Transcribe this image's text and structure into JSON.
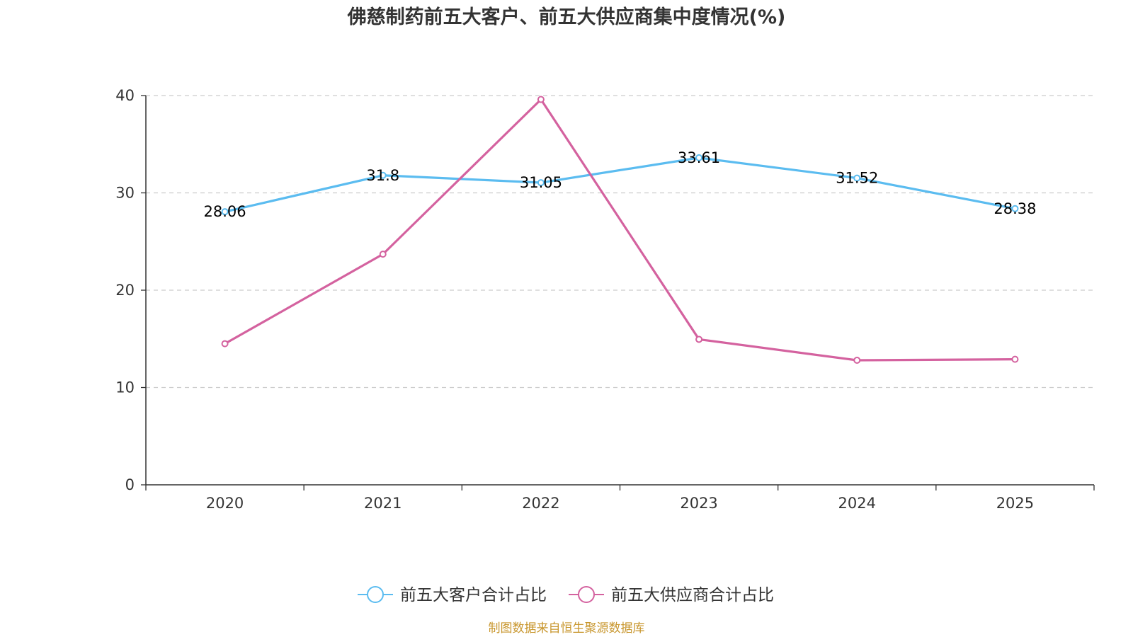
{
  "chart_data": {
    "type": "line",
    "title": "佛慈制药前五大客户、前五大供应商集中度情况(%)",
    "categories": [
      "2020",
      "2021",
      "2022",
      "2023",
      "2024",
      "2025"
    ],
    "ylim": [
      0,
      40
    ],
    "yticks": [
      0,
      10,
      20,
      30,
      40
    ],
    "grid": true,
    "legend_position": "bottom",
    "series": [
      {
        "name": "前五大客户合计占比",
        "color": "#5bbcf0",
        "values": [
          28.06,
          31.8,
          31.05,
          33.61,
          31.52,
          28.38
        ],
        "labels": [
          "28.06",
          "31.8",
          "31.05",
          "33.61",
          "31.52",
          "28.38"
        ],
        "show_labels": true
      },
      {
        "name": "前五大供应商合计占比",
        "color": "#d4629f",
        "values": [
          14.5,
          23.7,
          39.6,
          14.95,
          12.8,
          12.9
        ],
        "show_labels": false
      }
    ]
  },
  "source_note": "制图数据来自恒生聚源数据库"
}
